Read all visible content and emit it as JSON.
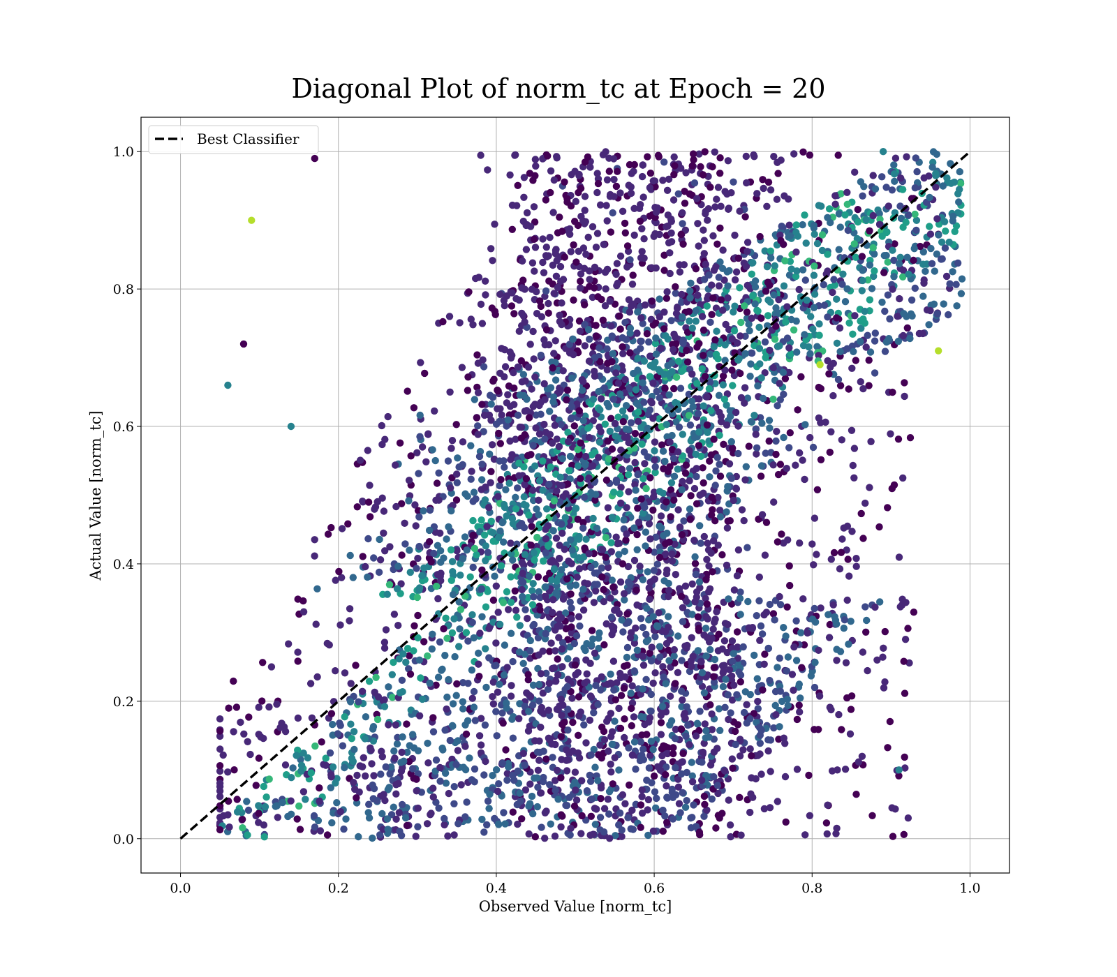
{
  "chart_data": {
    "type": "scatter",
    "title": "Diagonal Plot of norm_tc at Epoch = 20",
    "xlabel": "Observed Value [norm_tc]",
    "ylabel": "Actual Value [norm_tc]",
    "xlim": [
      -0.05,
      1.05
    ],
    "ylim": [
      -0.05,
      1.05
    ],
    "xticks": [
      "0.0",
      "0.2",
      "0.4",
      "0.6",
      "0.8",
      "1.0"
    ],
    "yticks": [
      "0.0",
      "0.2",
      "0.4",
      "0.6",
      "0.8",
      "1.0"
    ],
    "grid": true,
    "legend": {
      "position": "top-left",
      "entries": [
        "Best Classifier"
      ]
    },
    "series": [
      {
        "name": "Best Classifier",
        "type": "line",
        "style": "dashed",
        "color": "#000000",
        "x": [
          0.0,
          1.0
        ],
        "y": [
          0.0,
          1.0
        ]
      }
    ],
    "scatter_description_points": [
      {
        "x": 0.06,
        "y": 0.66
      },
      {
        "x": 0.08,
        "y": 0.72
      },
      {
        "x": 0.09,
        "y": 0.9
      },
      {
        "x": 0.14,
        "y": 0.6
      },
      {
        "x": 0.17,
        "y": 0.99
      },
      {
        "x": 0.96,
        "y": 0.71
      },
      {
        "x": 0.91,
        "y": 0.1
      },
      {
        "x": 0.56,
        "y": 0.4
      },
      {
        "x": 0.81,
        "y": 0.69
      },
      {
        "x": 0.89,
        "y": 1.0
      }
    ],
    "colormap": [
      "#440154",
      "#482878",
      "#3e4989",
      "#31688e",
      "#26828e",
      "#1f9e89",
      "#35b779",
      "#6ece58",
      "#b5de2b",
      "#fde725"
    ]
  }
}
